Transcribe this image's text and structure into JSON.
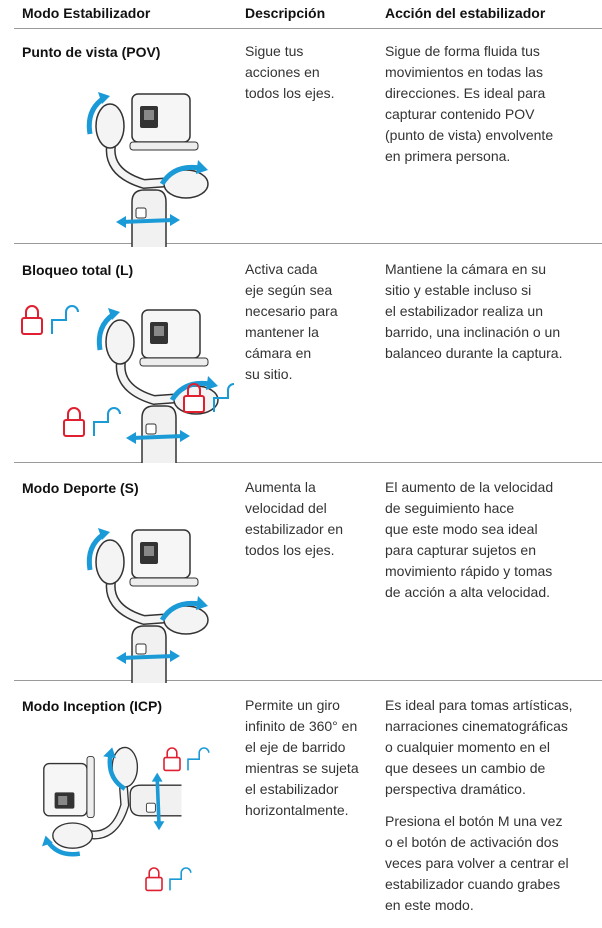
{
  "table": {
    "headers": [
      "Modo Estabilizador",
      "Descripción",
      "Acción del estabilizador"
    ],
    "rows": [
      {
        "mode": "Punto de vista (POV)",
        "description": [
          "Sigue tus",
          "acciones en",
          "todos los ejes."
        ],
        "action": [
          [
            "Sigue de forma fluida tus",
            "movimientos en todas las",
            "direcciones. Es ideal para",
            "capturar contenido POV",
            "(punto de vista) envolvente",
            "en primera persona."
          ]
        ]
      },
      {
        "mode": "Bloqueo total (L)",
        "description": [
          "Activa cada",
          "eje según sea",
          "necesario para",
          "mantener la",
          "cámara en",
          "su sitio."
        ],
        "action": [
          [
            "Mantiene la cámara en su",
            "sitio y estable incluso si",
            "el estabilizador realiza un",
            "barrido, una inclinación o un",
            "balanceo durante la captura."
          ]
        ]
      },
      {
        "mode": "Modo Deporte (S)",
        "description": [
          "Aumenta la",
          "velocidad del",
          "estabilizador en",
          "todos los ejes."
        ],
        "action": [
          [
            "El aumento de la velocidad",
            "de seguimiento hace",
            "que este modo sea ideal",
            "para capturar sujetos en",
            "movimiento rápido y tomas",
            "de acción a alta velocidad."
          ]
        ]
      },
      {
        "mode": "Modo Inception (ICP)",
        "description": [
          "Permite un giro",
          "infinito de 360° en",
          "el eje de barrido",
          "mientras se sujeta",
          "el estabilizador",
          "horizontalmente."
        ],
        "action": [
          [
            "Es ideal para tomas artísticas,",
            "narraciones cinematográficas",
            "o cualquier momento en el",
            "que desees un cambio de",
            "perspectiva dramático."
          ],
          [
            "Presiona el botón M una vez",
            "o el botón de activación dos",
            "veces para volver a centrar el",
            "estabilizador cuando grabes",
            "en este modo."
          ]
        ]
      }
    ]
  }
}
